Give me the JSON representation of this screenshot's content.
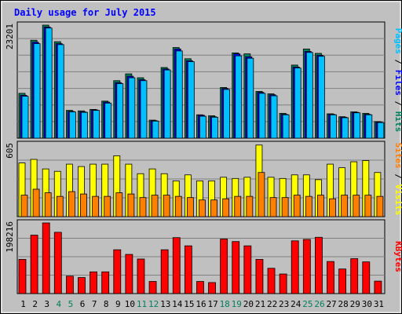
{
  "chart_data": {
    "type": "bar",
    "title": "Daily usage for July 2015",
    "categories": [
      "1",
      "2",
      "3",
      "4",
      "5",
      "6",
      "7",
      "8",
      "9",
      "10",
      "11",
      "12",
      "13",
      "14",
      "15",
      "16",
      "17",
      "18",
      "19",
      "20",
      "21",
      "22",
      "23",
      "24",
      "25",
      "26",
      "27",
      "28",
      "29",
      "30",
      "31"
    ],
    "weekend_days": [
      "4",
      "5",
      "11",
      "12",
      "18",
      "19",
      "25",
      "26"
    ],
    "panels": [
      {
        "id": "hits",
        "max_label": "23201",
        "ylim": [
          0,
          23201
        ],
        "series": [
          {
            "name": "Hits",
            "color": "#00805c",
            "values": [
              9200,
              20100,
              23201,
              19800,
              5700,
              5600,
              5900,
              7600,
              11800,
              13200,
              12400,
              3700,
              14500,
              18600,
              16300,
              4800,
              4600,
              10400,
              17500,
              17300,
              9600,
              9100,
              5100,
              15000,
              18300,
              17400,
              5000,
              4400,
              5400,
              5100,
              3400
            ]
          },
          {
            "name": "Files",
            "color": "#0000ff",
            "values": [
              8800,
              19700,
              22800,
              19400,
              5500,
              5400,
              5800,
              7400,
              11400,
              12700,
              12000,
              3600,
              14200,
              18300,
              15900,
              4700,
              4400,
              10200,
              17300,
              16700,
              9400,
              8900,
              4900,
              14600,
              17800,
              17000,
              4900,
              4300,
              5300,
              4900,
              3300
            ]
          },
          {
            "name": "Pages",
            "color": "#00c0ff",
            "values": [
              8600,
              19400,
              22600,
              19200,
              5400,
              5300,
              5700,
              7200,
              11200,
              12400,
              11800,
              3500,
              14000,
              17900,
              15700,
              4500,
              4300,
              10000,
              16900,
              16400,
              9200,
              8700,
              4800,
              14400,
              17600,
              16800,
              4800,
              4200,
              5200,
              4800,
              3200
            ]
          }
        ]
      },
      {
        "id": "visits",
        "max_label": "605",
        "ylim": [
          0,
          605
        ],
        "series": [
          {
            "name": "Visits",
            "color": "#ffff00",
            "values": [
              450,
              480,
              400,
              380,
              440,
              420,
              440,
              440,
              510,
              440,
              360,
              400,
              360,
              300,
              350,
              300,
              300,
              330,
              320,
              330,
              600,
              330,
              320,
              350,
              350,
              310,
              440,
              410,
              460,
              470,
              370
            ]
          },
          {
            "name": "Sites",
            "color": "#ff8000",
            "values": [
              180,
              230,
              200,
              170,
              210,
              190,
              170,
              170,
              200,
              190,
              160,
              180,
              180,
              170,
              160,
              140,
              140,
              150,
              170,
              170,
              370,
              160,
              160,
              180,
              170,
              180,
              150,
              180,
              180,
              180,
              170
            ]
          }
        ]
      },
      {
        "id": "kbytes",
        "max_label": "198216",
        "ylim": [
          0,
          198216
        ],
        "series": [
          {
            "name": "KBytes",
            "color": "#ff0000",
            "values": [
              96000,
              164000,
              198216,
              172000,
              49000,
              45000,
              61000,
              61000,
              123000,
              110000,
              97000,
              34000,
              123000,
              157000,
              134000,
              34000,
              31000,
              153000,
              146000,
              134000,
              96000,
              71000,
              55000,
              148000,
              152000,
              158000,
              90000,
              69000,
              98000,
              89000,
              35000
            ]
          }
        ]
      }
    ],
    "legend_right": [
      {
        "panel": "hits",
        "items": [
          {
            "text": "Pages",
            "color": "#00c0ff"
          },
          {
            "text": " / ",
            "color": "#000000"
          },
          {
            "text": "Files",
            "color": "#0000ff"
          },
          {
            "text": " / ",
            "color": "#000000"
          },
          {
            "text": "Hits",
            "color": "#00805c"
          }
        ]
      },
      {
        "panel": "visits",
        "items": [
          {
            "text": "Sites",
            "color": "#ff8000"
          },
          {
            "text": " / ",
            "color": "#000000"
          },
          {
            "text": "Visits",
            "color": "#ffff00"
          }
        ]
      },
      {
        "panel": "kbytes",
        "items": [
          {
            "text": "KBytes",
            "color": "#ff0000"
          }
        ]
      }
    ],
    "colors": {
      "title": "#0000ff",
      "plot_background": "#c0c0c0",
      "frame_background": "#c0c0c0",
      "grid": "#808080",
      "weekday_label": "#000000",
      "weekend_label": "#00805c"
    },
    "grid": true
  }
}
